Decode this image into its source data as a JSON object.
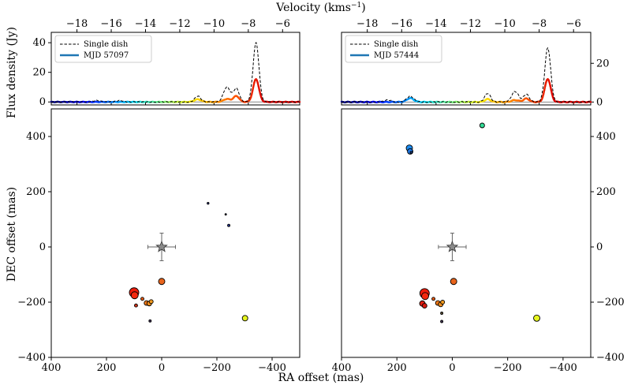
{
  "figure": {
    "top_title": "Velocity (kms",
    "top_title_sup": "−1",
    "top_title_end": ")",
    "left_title_top": "Flux density (Jy)",
    "left_title_bottom": "DEC offset (mas)",
    "bottom_title": "RA offset (mas)"
  },
  "chart_data": [
    {
      "type": "line",
      "panel": "spectrum-left",
      "xlabel": "Velocity (kms−1)",
      "ylabel": "Flux density (Jy)",
      "xlim": [
        -19.5,
        -5.0
      ],
      "ylim": [
        -2,
        47
      ],
      "xticks": [
        -18,
        -16,
        -14,
        -12,
        -10,
        -8,
        -6
      ],
      "xtick_labels": [
        "−18",
        "−16",
        "−14",
        "−12",
        "−10",
        "−8",
        "−6"
      ],
      "yticks": [
        0,
        20,
        40
      ],
      "ytick_labels": [
        "0",
        "20",
        "40"
      ],
      "legend": {
        "position": "top-left",
        "entries": [
          "Single dish",
          "MJD 57097"
        ]
      },
      "series": [
        {
          "name": "Single dish",
          "style": "dashed",
          "color": "#000000",
          "peaks": [
            [
              -7.55,
              40,
              0.17
            ],
            [
              -8.7,
              9,
              0.17
            ],
            [
              -9.25,
              10,
              0.2
            ],
            [
              -10.95,
              4,
              0.17
            ],
            [
              -15.5,
              1,
              0.2
            ],
            [
              -16.85,
              1,
              0.2
            ]
          ]
        },
        {
          "name": "MJD 57097",
          "style": "solid-rainbow",
          "color": "#1f77b4",
          "peaks": [
            [
              -7.55,
              15.5,
              0.17
            ],
            [
              -8.7,
              4,
              0.17
            ],
            [
              -9.25,
              2,
              0.2
            ],
            [
              -10.95,
              1.8,
              0.2
            ]
          ]
        }
      ]
    },
    {
      "type": "line",
      "panel": "spectrum-right",
      "xlabel": "Velocity (kms−1)",
      "ylabel": "",
      "xlim": [
        -19.5,
        -5.0
      ],
      "ylim": [
        -1.5,
        36
      ],
      "xticks": [
        -18,
        -16,
        -14,
        -12,
        -10,
        -8,
        -6
      ],
      "xtick_labels": [
        "−18",
        "−16",
        "−14",
        "−12",
        "−10",
        "−8",
        "−6"
      ],
      "yticks": [
        0,
        20
      ],
      "ytick_labels": [
        "0",
        "20"
      ],
      "legend": {
        "position": "top-left",
        "entries": [
          "Single dish",
          "MJD 57444"
        ]
      },
      "series": [
        {
          "name": "Single dish",
          "style": "dashed",
          "color": "#000000",
          "peaks": [
            [
              -7.5,
              28,
              0.17
            ],
            [
              -8.75,
              4,
              0.17
            ],
            [
              -9.4,
              5.5,
              0.2
            ],
            [
              -11.0,
              4.5,
              0.17
            ],
            [
              -15.5,
              3,
              0.2
            ],
            [
              -16.8,
              1,
              0.2
            ]
          ]
        },
        {
          "name": "MJD 57444",
          "style": "solid-rainbow",
          "color": "#1f77b4",
          "peaks": [
            [
              -7.5,
              12,
              0.17
            ],
            [
              -8.75,
              1.8,
              0.17
            ],
            [
              -9.4,
              1,
              0.2
            ],
            [
              -11.0,
              1.5,
              0.17
            ],
            [
              -15.5,
              2,
              0.2
            ]
          ]
        }
      ]
    },
    {
      "type": "scatter",
      "panel": "map-left",
      "xlabel": "RA offset (mas)",
      "ylabel": "DEC offset (mas)",
      "xlim": [
        400,
        -500
      ],
      "ylim": [
        -400,
        500
      ],
      "xticks": [
        400,
        200,
        0,
        -200,
        -400
      ],
      "xtick_labels": [
        "400",
        "200",
        "0",
        "−200",
        "−400"
      ],
      "yticks": [
        -400,
        -200,
        0,
        200,
        400
      ],
      "ytick_labels": [
        "−400",
        "−200",
        "0",
        "200",
        "400"
      ],
      "reference_star": {
        "ra": 0,
        "dec": 0,
        "ra_err": 50,
        "dec_err": 50
      },
      "points": [
        {
          "ra": 100,
          "dec": -165,
          "size": 6.0,
          "color": "#ee1c0c"
        },
        {
          "ra": 98,
          "dec": -175,
          "size": 4.5,
          "color": "#f42a10"
        },
        {
          "ra": 93,
          "dec": -212,
          "size": 2.0,
          "color": "#c83218"
        },
        {
          "ra": 70,
          "dec": -188,
          "size": 2.0,
          "color": "#e85a14"
        },
        {
          "ra": 55,
          "dec": -203,
          "size": 3.0,
          "color": "#f07818"
        },
        {
          "ra": 45,
          "dec": -205,
          "size": 3.0,
          "color": "#f08c1c"
        },
        {
          "ra": 38,
          "dec": -198,
          "size": 2.5,
          "color": "#f09a20"
        },
        {
          "ra": 42,
          "dec": -268,
          "size": 1.5,
          "color": "#4a3a60"
        },
        {
          "ra": 0,
          "dec": -125,
          "size": 4.0,
          "color": "#e8641c"
        },
        {
          "ra": -302,
          "dec": -258,
          "size": 3.5,
          "color": "#e6f51e"
        },
        {
          "ra": -168,
          "dec": 158,
          "size": 1.2,
          "color": "#323c8c"
        },
        {
          "ra": -232,
          "dec": 118,
          "size": 1.0,
          "color": "#28306e"
        },
        {
          "ra": -243,
          "dec": 78,
          "size": 1.5,
          "color": "#2838a0"
        }
      ]
    },
    {
      "type": "scatter",
      "panel": "map-right",
      "xlabel": "RA offset (mas)",
      "ylabel": "DEC offset (mas)",
      "xlim": [
        400,
        -500
      ],
      "ylim": [
        -400,
        500
      ],
      "xticks": [
        400,
        200,
        0,
        -200,
        -400
      ],
      "xtick_labels": [
        "400",
        "200",
        "0",
        "−200",
        "−400"
      ],
      "yticks": [
        -400,
        -200,
        0,
        200,
        400
      ],
      "ytick_labels": [
        "−400",
        "−200",
        "0",
        "200",
        "400"
      ],
      "reference_star": {
        "ra": 0,
        "dec": 0,
        "ra_err": 50,
        "dec_err": 50
      },
      "points": [
        {
          "ra": 100,
          "dec": -168,
          "size": 6.0,
          "color": "#ee1c0c"
        },
        {
          "ra": 98,
          "dec": -178,
          "size": 4.5,
          "color": "#f42a10"
        },
        {
          "ra": 108,
          "dec": -205,
          "size": 3.5,
          "color": "#e01e12"
        },
        {
          "ra": 100,
          "dec": -213,
          "size": 3.0,
          "color": "#d81a10"
        },
        {
          "ra": 68,
          "dec": -188,
          "size": 2.0,
          "color": "#e85a14"
        },
        {
          "ra": 52,
          "dec": -203,
          "size": 3.0,
          "color": "#f07818"
        },
        {
          "ra": 42,
          "dec": -208,
          "size": 3.0,
          "color": "#f08c1c"
        },
        {
          "ra": 35,
          "dec": -200,
          "size": 2.5,
          "color": "#f09a20"
        },
        {
          "ra": 38,
          "dec": -240,
          "size": 1.5,
          "color": "#6a5a40"
        },
        {
          "ra": 38,
          "dec": -270,
          "size": 1.5,
          "color": "#4a3a60"
        },
        {
          "ra": -5,
          "dec": -125,
          "size": 4.0,
          "color": "#e8641c"
        },
        {
          "ra": -305,
          "dec": -258,
          "size": 4.0,
          "color": "#e6f51e"
        },
        {
          "ra": 155,
          "dec": 358,
          "size": 4.0,
          "color": "#1e8cf0"
        },
        {
          "ra": 152,
          "dec": 346,
          "size": 3.5,
          "color": "#1e78e6"
        },
        {
          "ra": 148,
          "dec": 342,
          "size": 1.5,
          "color": "#1e3c80"
        },
        {
          "ra": -108,
          "dec": 440,
          "size": 3.0,
          "color": "#32dc96"
        }
      ]
    }
  ]
}
